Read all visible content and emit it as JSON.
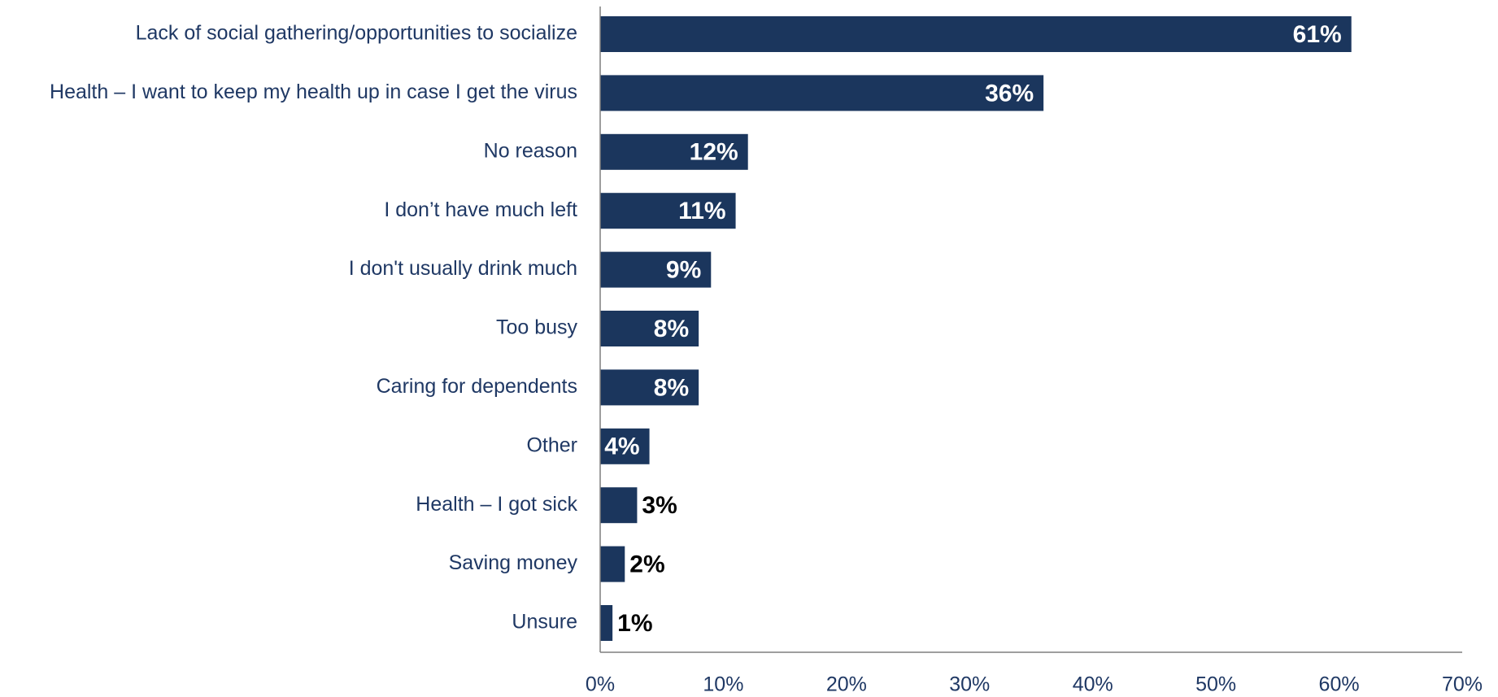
{
  "chart_data": {
    "type": "bar",
    "orientation": "horizontal",
    "categories": [
      "Lack of social gathering/opportunities to socialize",
      "Health – I want to keep my health up in case I get the virus",
      "No reason",
      "I don’t have much left",
      "I don't usually drink much",
      "Too busy",
      "Caring for dependents",
      "Other",
      "Health – I got sick",
      "Saving money",
      "Unsure"
    ],
    "values": [
      61,
      36,
      12,
      11,
      9,
      8,
      8,
      4,
      3,
      2,
      1
    ],
    "value_labels": [
      "61%",
      "36%",
      "12%",
      "11%",
      "9%",
      "8%",
      "8%",
      "4%",
      "3%",
      "2%",
      "1%"
    ],
    "xlim": [
      0,
      70
    ],
    "xticks": [
      "0%",
      "10%",
      "20%",
      "30%",
      "40%",
      "50%",
      "60%",
      "70%"
    ],
    "grid": false,
    "legend": "none",
    "bar_color": "#1b365d",
    "label_inside_color": "#ffffff",
    "label_outside_color": "#000000",
    "category_label_color": "#1f3864",
    "axis_color": "#7f7f7f"
  }
}
